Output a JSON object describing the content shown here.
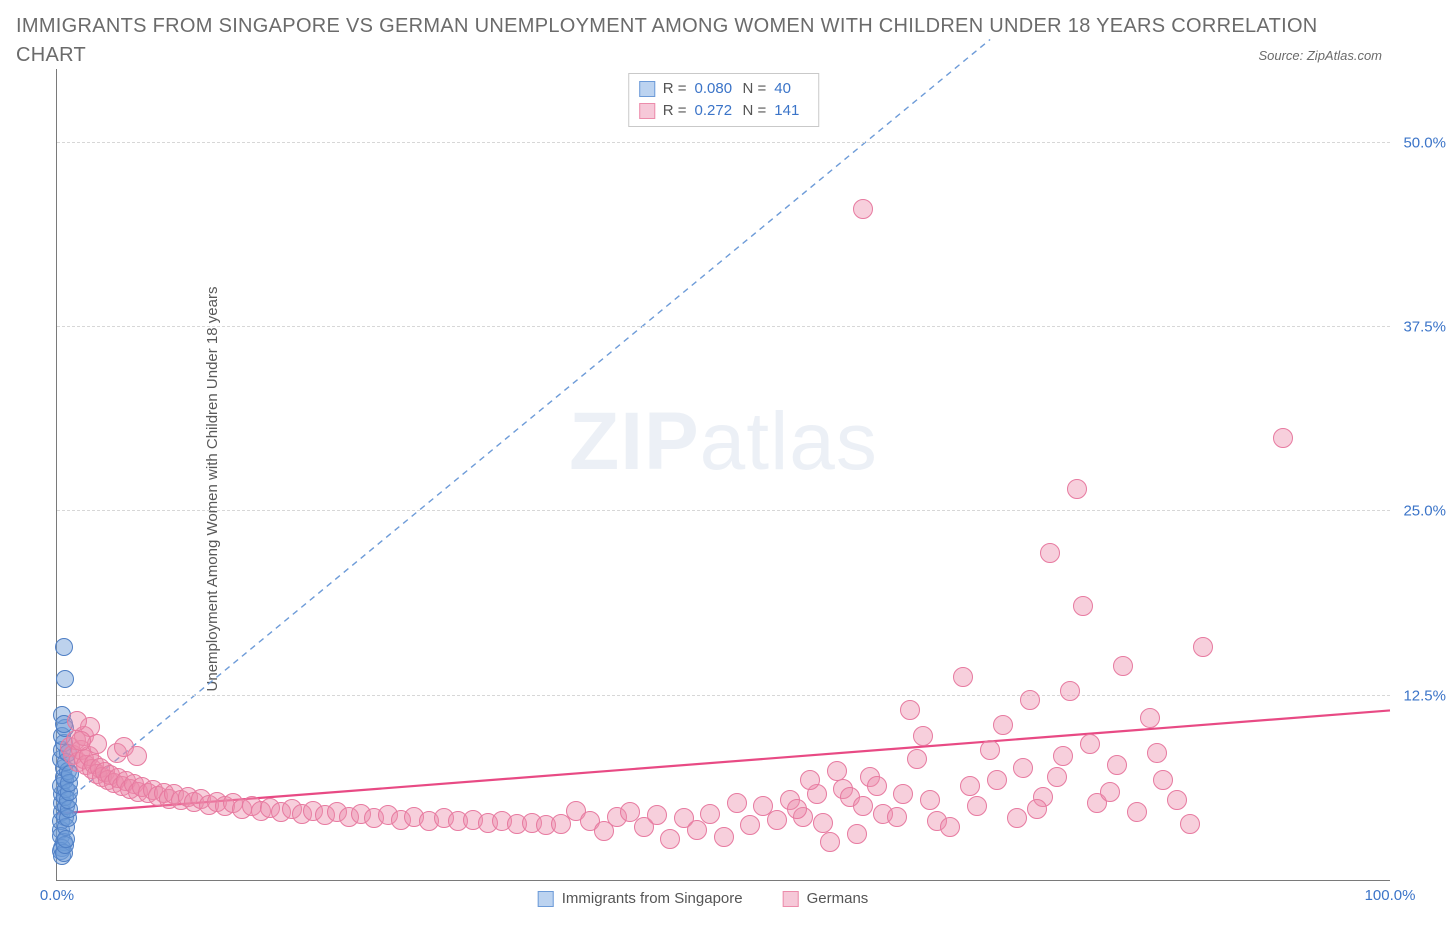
{
  "title": "IMMIGRANTS FROM SINGAPORE VS GERMAN UNEMPLOYMENT AMONG WOMEN WITH CHILDREN UNDER 18 YEARS CORRELATION CHART",
  "source_label": "Source: ZipAtlas.com",
  "ylabel": "Unemployment Among Women with Children Under 18 years",
  "watermark_a": "ZIP",
  "watermark_b": "atlas",
  "chart": {
    "type": "scatter",
    "xlim": [
      0,
      100
    ],
    "ylim": [
      0,
      55
    ],
    "grid_dash_color": "#d7d7d7",
    "axis_color": "#7a7a7a",
    "background_color": "#ffffff",
    "yticks": [
      {
        "v": 12.5,
        "label": "12.5%"
      },
      {
        "v": 25.0,
        "label": "25.0%"
      },
      {
        "v": 37.5,
        "label": "37.5%"
      },
      {
        "v": 50.0,
        "label": "50.0%"
      }
    ],
    "xticks": [
      {
        "v": 0,
        "label": "0.0%"
      },
      {
        "v": 100,
        "label": "100.0%"
      }
    ],
    "series": [
      {
        "name": "Immigrants from Singapore",
        "marker_fill": "rgba(108,155,216,0.45)",
        "marker_stroke": "#4f7fc5",
        "swatch_fill": "#bcd3f0",
        "swatch_stroke": "#6d9bd8",
        "marker_radius": 9,
        "R": "0.080",
        "N": "40",
        "trend": {
          "x1": 0.5,
          "y1": 5.2,
          "x2": 70,
          "y2": 57,
          "stroke": "#6d9bd8",
          "width": 1.4,
          "dash": "6,5"
        },
        "points": [
          [
            0.3,
            3.4
          ],
          [
            0.3,
            4.0
          ],
          [
            0.4,
            4.6
          ],
          [
            0.4,
            5.2
          ],
          [
            0.4,
            5.8
          ],
          [
            0.3,
            6.4
          ],
          [
            0.5,
            7.0
          ],
          [
            0.5,
            7.6
          ],
          [
            0.3,
            8.2
          ],
          [
            0.4,
            8.8
          ],
          [
            0.5,
            9.3
          ],
          [
            0.4,
            9.8
          ],
          [
            0.6,
            10.3
          ],
          [
            0.3,
            3.0
          ],
          [
            0.5,
            2.6
          ],
          [
            0.4,
            2.2
          ],
          [
            0.6,
            4.3
          ],
          [
            0.7,
            5.0
          ],
          [
            0.6,
            5.6
          ],
          [
            0.7,
            6.2
          ],
          [
            0.6,
            6.8
          ],
          [
            0.8,
            7.4
          ],
          [
            0.7,
            8.0
          ],
          [
            0.8,
            8.6
          ],
          [
            0.7,
            3.6
          ],
          [
            0.8,
            4.2
          ],
          [
            0.9,
            4.8
          ],
          [
            0.8,
            5.4
          ],
          [
            0.9,
            6.0
          ],
          [
            0.9,
            6.6
          ],
          [
            1.0,
            7.2
          ],
          [
            0.5,
            15.8
          ],
          [
            0.6,
            13.6
          ],
          [
            0.4,
            11.2
          ],
          [
            0.5,
            10.6
          ],
          [
            0.3,
            2.0
          ],
          [
            0.4,
            1.6
          ],
          [
            0.5,
            1.8
          ],
          [
            0.6,
            2.4
          ],
          [
            0.7,
            2.8
          ]
        ]
      },
      {
        "name": "Germans",
        "marker_fill": "rgba(236,140,172,0.42)",
        "marker_stroke": "#e77aa0",
        "swatch_fill": "#f6c8d8",
        "swatch_stroke": "#ec8cab",
        "marker_radius": 10,
        "R": "0.272",
        "N": "141",
        "trend": {
          "x1": 0,
          "y1": 4.5,
          "x2": 100,
          "y2": 11.5,
          "stroke": "#e84a84",
          "width": 2.2,
          "dash": ""
        },
        "points": [
          [
            1.0,
            9.0
          ],
          [
            1.2,
            8.5
          ],
          [
            1.4,
            9.5
          ],
          [
            1.6,
            8.0
          ],
          [
            1.8,
            8.8
          ],
          [
            2.0,
            8.2
          ],
          [
            2.2,
            7.8
          ],
          [
            2.4,
            8.4
          ],
          [
            2.6,
            7.5
          ],
          [
            2.8,
            7.9
          ],
          [
            3.0,
            7.2
          ],
          [
            3.2,
            7.6
          ],
          [
            3.4,
            7.0
          ],
          [
            3.6,
            7.3
          ],
          [
            3.8,
            6.8
          ],
          [
            4.0,
            7.1
          ],
          [
            4.3,
            6.6
          ],
          [
            4.6,
            6.9
          ],
          [
            4.9,
            6.4
          ],
          [
            5.2,
            6.7
          ],
          [
            5.5,
            6.2
          ],
          [
            5.8,
            6.5
          ],
          [
            6.1,
            6.0
          ],
          [
            6.4,
            6.3
          ],
          [
            6.8,
            5.9
          ],
          [
            7.2,
            6.1
          ],
          [
            7.6,
            5.7
          ],
          [
            8.0,
            5.9
          ],
          [
            8.4,
            5.5
          ],
          [
            8.8,
            5.8
          ],
          [
            9.3,
            5.4
          ],
          [
            9.8,
            5.6
          ],
          [
            10.3,
            5.3
          ],
          [
            10.8,
            5.5
          ],
          [
            11.4,
            5.1
          ],
          [
            12.0,
            5.3
          ],
          [
            12.6,
            5.0
          ],
          [
            13.2,
            5.2
          ],
          [
            13.9,
            4.8
          ],
          [
            14.6,
            5.0
          ],
          [
            15.3,
            4.7
          ],
          [
            16.0,
            4.9
          ],
          [
            16.8,
            4.6
          ],
          [
            17.6,
            4.8
          ],
          [
            18.4,
            4.5
          ],
          [
            19.2,
            4.7
          ],
          [
            20.1,
            4.4
          ],
          [
            21.0,
            4.6
          ],
          [
            21.9,
            4.3
          ],
          [
            22.8,
            4.5
          ],
          [
            23.8,
            4.2
          ],
          [
            24.8,
            4.4
          ],
          [
            25.8,
            4.1
          ],
          [
            26.8,
            4.3
          ],
          [
            27.9,
            4.0
          ],
          [
            29.0,
            4.2
          ],
          [
            30.1,
            4.0
          ],
          [
            31.2,
            4.1
          ],
          [
            32.3,
            3.9
          ],
          [
            33.4,
            4.0
          ],
          [
            34.5,
            3.8
          ],
          [
            35.6,
            3.9
          ],
          [
            36.7,
            3.7
          ],
          [
            37.8,
            3.8
          ],
          [
            38.9,
            4.7
          ],
          [
            40.0,
            4.0
          ],
          [
            41.0,
            3.3
          ],
          [
            42.0,
            4.3
          ],
          [
            43.0,
            4.6
          ],
          [
            44.0,
            3.6
          ],
          [
            45.0,
            4.4
          ],
          [
            46.0,
            2.8
          ],
          [
            47.0,
            4.2
          ],
          [
            48.0,
            3.4
          ],
          [
            49.0,
            4.5
          ],
          [
            50.0,
            2.9
          ],
          [
            51.0,
            5.2
          ],
          [
            52.0,
            3.7
          ],
          [
            53.0,
            5.0
          ],
          [
            54.0,
            4.1
          ],
          [
            55.0,
            5.4
          ],
          [
            56.0,
            4.3
          ],
          [
            57.0,
            5.8
          ],
          [
            58.0,
            2.6
          ],
          [
            59.0,
            6.2
          ],
          [
            60.0,
            3.1
          ],
          [
            55.5,
            4.8
          ],
          [
            56.5,
            6.8
          ],
          [
            57.5,
            3.9
          ],
          [
            58.5,
            7.4
          ],
          [
            59.5,
            5.6
          ],
          [
            60.5,
            5.0
          ],
          [
            61.0,
            7.0
          ],
          [
            62.0,
            4.5
          ],
          [
            61.5,
            6.4
          ],
          [
            63.0,
            4.3
          ],
          [
            64.0,
            11.5
          ],
          [
            65.0,
            9.8
          ],
          [
            63.5,
            5.8
          ],
          [
            66.0,
            4.0
          ],
          [
            67.0,
            3.6
          ],
          [
            68.0,
            13.8
          ],
          [
            64.5,
            8.2
          ],
          [
            65.5,
            5.4
          ],
          [
            69.0,
            5.0
          ],
          [
            70.0,
            8.8
          ],
          [
            68.5,
            6.4
          ],
          [
            71.0,
            10.5
          ],
          [
            72.0,
            4.2
          ],
          [
            70.5,
            6.8
          ],
          [
            73.0,
            12.2
          ],
          [
            72.5,
            7.6
          ],
          [
            74.0,
            5.6
          ],
          [
            75.0,
            7.0
          ],
          [
            73.5,
            4.8
          ],
          [
            74.5,
            22.2
          ],
          [
            76.0,
            12.8
          ],
          [
            75.5,
            8.4
          ],
          [
            77.0,
            18.6
          ],
          [
            78.0,
            5.2
          ],
          [
            77.5,
            9.2
          ],
          [
            76.5,
            26.5
          ],
          [
            79.0,
            6.0
          ],
          [
            80.0,
            14.5
          ],
          [
            79.5,
            7.8
          ],
          [
            81.0,
            4.6
          ],
          [
            82.0,
            11.0
          ],
          [
            60.5,
            45.5
          ],
          [
            83.0,
            6.8
          ],
          [
            82.5,
            8.6
          ],
          [
            84.0,
            5.4
          ],
          [
            85.0,
            3.8
          ],
          [
            86.0,
            15.8
          ],
          [
            2.0,
            9.8
          ],
          [
            2.5,
            10.4
          ],
          [
            3.0,
            9.2
          ],
          [
            1.5,
            10.8
          ],
          [
            1.8,
            9.4
          ],
          [
            92.0,
            30.0
          ],
          [
            4.5,
            8.6
          ],
          [
            5.0,
            9.0
          ],
          [
            6.0,
            8.4
          ]
        ]
      }
    ]
  },
  "bottom_legend": {
    "item1": "Immigrants from Singapore",
    "item2": "Germans"
  }
}
